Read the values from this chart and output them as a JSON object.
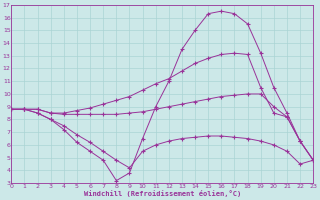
{
  "xlabel": "Windchill (Refroidissement éolien,°C)",
  "bg_color": "#cce8e8",
  "grid_color": "#aad4d4",
  "line_color": "#993399",
  "xlim": [
    0,
    23
  ],
  "ylim": [
    3,
    17
  ],
  "xticks": [
    0,
    1,
    2,
    3,
    4,
    5,
    6,
    7,
    8,
    9,
    10,
    11,
    12,
    13,
    14,
    15,
    16,
    17,
    18,
    19,
    20,
    21,
    22,
    23
  ],
  "yticks": [
    3,
    4,
    5,
    6,
    7,
    8,
    9,
    10,
    11,
    12,
    13,
    14,
    15,
    16,
    17
  ],
  "line1_x": [
    0,
    1,
    2,
    3,
    4,
    5,
    6,
    7,
    8,
    9,
    10,
    11,
    12,
    13,
    14,
    15,
    16,
    17,
    18,
    19,
    20,
    21,
    22,
    23
  ],
  "line1_y": [
    8.8,
    8.8,
    8.8,
    8.5,
    8.5,
    8.7,
    8.9,
    9.2,
    9.5,
    9.8,
    10.3,
    10.8,
    11.2,
    11.8,
    12.4,
    12.8,
    13.1,
    13.2,
    13.1,
    10.5,
    8.5,
    8.2,
    6.3,
    4.8
  ],
  "line2_x": [
    0,
    1,
    2,
    3,
    4,
    5,
    6,
    7,
    8,
    9,
    10,
    11,
    12,
    13,
    14,
    15,
    16,
    17,
    18,
    19,
    20,
    21,
    22,
    23
  ],
  "line2_y": [
    8.8,
    8.8,
    8.8,
    8.5,
    8.4,
    8.4,
    8.4,
    8.4,
    8.4,
    8.5,
    8.6,
    8.8,
    9.0,
    9.2,
    9.4,
    9.6,
    9.8,
    9.9,
    10.0,
    10.0,
    9.0,
    8.2,
    6.3,
    4.8
  ],
  "line3_x": [
    0,
    1,
    2,
    3,
    4,
    5,
    6,
    7,
    8,
    9,
    10,
    11,
    12,
    13,
    14,
    15,
    16,
    17,
    18,
    19,
    20,
    21,
    22,
    23
  ],
  "line3_y": [
    8.8,
    8.8,
    8.5,
    8.0,
    7.5,
    6.8,
    6.2,
    5.5,
    4.8,
    4.2,
    5.5,
    6.0,
    6.3,
    6.5,
    6.6,
    6.7,
    6.7,
    6.6,
    6.5,
    6.3,
    6.0,
    5.5,
    4.5,
    4.8
  ],
  "line4_x": [
    0,
    1,
    2,
    3,
    4,
    5,
    6,
    7,
    8,
    9,
    10,
    11,
    12,
    13,
    14,
    15,
    16,
    17,
    18,
    19,
    20,
    21,
    22,
    23
  ],
  "line4_y": [
    8.8,
    8.8,
    8.5,
    8.0,
    7.2,
    6.2,
    5.5,
    4.8,
    3.2,
    3.8,
    6.5,
    9.0,
    11.0,
    13.5,
    15.0,
    16.3,
    16.5,
    16.3,
    15.5,
    13.2,
    10.5,
    8.5,
    6.3,
    4.8
  ]
}
